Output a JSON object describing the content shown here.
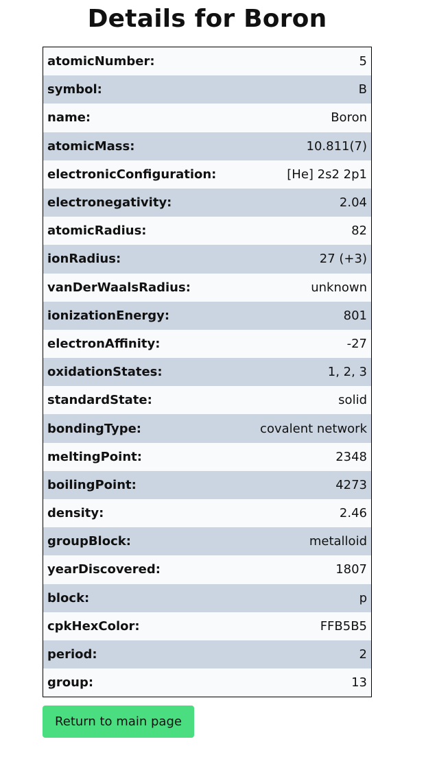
{
  "page": {
    "title": "Details for Boron"
  },
  "details": [
    {
      "key": "atomicNumber:",
      "value": "5"
    },
    {
      "key": "symbol:",
      "value": "B"
    },
    {
      "key": "name:",
      "value": "Boron"
    },
    {
      "key": "atomicMass:",
      "value": "10.811(7)"
    },
    {
      "key": "electronicConfiguration:",
      "value": "[He] 2s2 2p1"
    },
    {
      "key": "electronegativity:",
      "value": "2.04"
    },
    {
      "key": "atomicRadius:",
      "value": "82"
    },
    {
      "key": "ionRadius:",
      "value": "27 (+3)"
    },
    {
      "key": "vanDerWaalsRadius:",
      "value": "unknown"
    },
    {
      "key": "ionizationEnergy:",
      "value": "801"
    },
    {
      "key": "electronAffinity:",
      "value": "-27"
    },
    {
      "key": "oxidationStates:",
      "value": "1, 2, 3"
    },
    {
      "key": "standardState:",
      "value": "solid"
    },
    {
      "key": "bondingType:",
      "value": "covalent network"
    },
    {
      "key": "meltingPoint:",
      "value": "2348"
    },
    {
      "key": "boilingPoint:",
      "value": "4273"
    },
    {
      "key": "density:",
      "value": "2.46"
    },
    {
      "key": "groupBlock:",
      "value": "metalloid"
    },
    {
      "key": "yearDiscovered:",
      "value": "1807"
    },
    {
      "key": "block:",
      "value": "p"
    },
    {
      "key": "cpkHexColor:",
      "value": "FFB5B5"
    },
    {
      "key": "period:",
      "value": "2"
    },
    {
      "key": "group:",
      "value": "13"
    }
  ],
  "actions": {
    "return_label": "Return to main page"
  },
  "colors": {
    "row_light": "#f8fafc",
    "row_dark": "#cbd5e1",
    "button": "#4ade80"
  }
}
